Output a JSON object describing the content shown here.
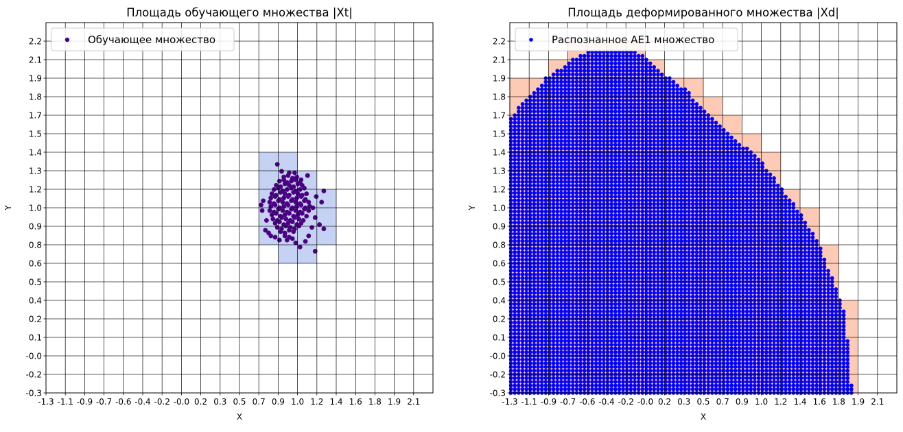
{
  "chart_data": [
    {
      "type": "scatter",
      "title": "Площадь обучающего множества |Xt|",
      "xlabel": "X",
      "ylabel": "Y",
      "xlim": [
        -1.28,
        2.3
      ],
      "ylim": [
        -0.3,
        2.34
      ],
      "grid": true,
      "legend_position": "top-left",
      "xticks": [
        -1.28,
        -1.101,
        -0.922,
        -0.743,
        -0.564,
        -0.385,
        -0.206,
        -0.027,
        0.152,
        0.331,
        0.51,
        0.689,
        0.868,
        1.047,
        1.226,
        1.405,
        1.584,
        1.763,
        1.942,
        2.121
      ],
      "xtick_labels": [
        "-1.3",
        "-1.1",
        "-0.9",
        "-0.7",
        "-0.6",
        "-0.4",
        "-0.2",
        "-0.0",
        "0.2",
        "0.3",
        "0.5",
        "0.7",
        "0.9",
        "1.0",
        "1.2",
        "1.4",
        "1.6",
        "1.8",
        "1.9",
        "2.1"
      ],
      "yticks": [
        -0.3,
        -0.168,
        -0.036,
        0.096,
        0.228,
        0.36,
        0.492,
        0.624,
        0.756,
        0.888,
        1.02,
        1.152,
        1.284,
        1.416,
        1.548,
        1.68,
        1.812,
        1.944,
        2.076,
        2.208
      ],
      "ytick_labels": [
        "-0.3",
        "-0.2",
        "-0.0",
        "0.1",
        "0.2",
        "0.4",
        "0.5",
        "0.6",
        "0.8",
        "0.9",
        "1.0",
        "1.2",
        "1.3",
        "1.4",
        "1.5",
        "1.7",
        "1.8",
        "1.9",
        "2.1",
        "2.2"
      ],
      "highlight_color": "#c5d2f3",
      "highlight_cells": [
        {
          "x": [
            0.689,
            0.868
          ],
          "y": [
            0.756,
            1.416
          ]
        },
        {
          "x": [
            0.868,
            1.047
          ],
          "y": [
            0.624,
            1.416
          ]
        },
        {
          "x": [
            1.047,
            1.226
          ],
          "y": [
            0.624,
            1.284
          ]
        },
        {
          "x": [
            1.226,
            1.405
          ],
          "y": [
            0.756,
            1.152
          ]
        }
      ],
      "series": [
        {
          "name": "Обучающее множество",
          "color": "#4b0082",
          "points": [
            [
              0.92,
              1.24
            ],
            [
              0.96,
              1.25
            ],
            [
              1.0,
              1.23
            ],
            [
              1.04,
              1.24
            ],
            [
              0.88,
              1.21
            ],
            [
              0.92,
              1.22
            ],
            [
              0.95,
              1.2
            ],
            [
              0.99,
              1.21
            ],
            [
              1.03,
              1.22
            ],
            [
              1.07,
              1.2
            ],
            [
              0.85,
              1.18
            ],
            [
              0.89,
              1.17
            ],
            [
              0.93,
              1.19
            ],
            [
              0.97,
              1.18
            ],
            [
              1.01,
              1.17
            ],
            [
              1.05,
              1.19
            ],
            [
              1.09,
              1.18
            ],
            [
              0.83,
              1.15
            ],
            [
              0.87,
              1.16
            ],
            [
              0.91,
              1.14
            ],
            [
              0.95,
              1.15
            ],
            [
              0.99,
              1.16
            ],
            [
              1.03,
              1.14
            ],
            [
              1.07,
              1.15
            ],
            [
              1.11,
              1.16
            ],
            [
              0.81,
              1.12
            ],
            [
              0.85,
              1.11
            ],
            [
              0.89,
              1.13
            ],
            [
              0.93,
              1.12
            ],
            [
              0.97,
              1.11
            ],
            [
              1.01,
              1.13
            ],
            [
              1.05,
              1.12
            ],
            [
              1.09,
              1.11
            ],
            [
              1.13,
              1.12
            ],
            [
              0.8,
              1.09
            ],
            [
              0.84,
              1.1
            ],
            [
              0.88,
              1.08
            ],
            [
              0.92,
              1.09
            ],
            [
              0.96,
              1.1
            ],
            [
              1.0,
              1.08
            ],
            [
              1.04,
              1.09
            ],
            [
              1.08,
              1.1
            ],
            [
              1.12,
              1.08
            ],
            [
              0.79,
              1.06
            ],
            [
              0.83,
              1.05
            ],
            [
              0.87,
              1.07
            ],
            [
              0.91,
              1.06
            ],
            [
              0.95,
              1.05
            ],
            [
              0.99,
              1.07
            ],
            [
              1.03,
              1.06
            ],
            [
              1.07,
              1.05
            ],
            [
              1.11,
              1.07
            ],
            [
              1.15,
              1.06
            ],
            [
              0.8,
              1.03
            ],
            [
              0.84,
              1.04
            ],
            [
              0.88,
              1.02
            ],
            [
              0.92,
              1.03
            ],
            [
              0.96,
              1.04
            ],
            [
              1.0,
              1.02
            ],
            [
              1.04,
              1.03
            ],
            [
              1.08,
              1.04
            ],
            [
              1.12,
              1.02
            ],
            [
              1.16,
              1.03
            ],
            [
              0.79,
              1.0
            ],
            [
              0.83,
              0.99
            ],
            [
              0.87,
              1.01
            ],
            [
              0.91,
              1.0
            ],
            [
              0.95,
              0.99
            ],
            [
              0.99,
              1.01
            ],
            [
              1.03,
              1.0
            ],
            [
              1.07,
              0.99
            ],
            [
              1.11,
              1.01
            ],
            [
              1.15,
              1.0
            ],
            [
              0.81,
              0.97
            ],
            [
              0.85,
              0.98
            ],
            [
              0.89,
              0.96
            ],
            [
              0.93,
              0.97
            ],
            [
              0.97,
              0.98
            ],
            [
              1.01,
              0.96
            ],
            [
              1.05,
              0.97
            ],
            [
              1.09,
              0.98
            ],
            [
              1.13,
              0.96
            ],
            [
              0.82,
              0.94
            ],
            [
              0.86,
              0.93
            ],
            [
              0.9,
              0.95
            ],
            [
              0.94,
              0.94
            ],
            [
              0.98,
              0.93
            ],
            [
              1.02,
              0.95
            ],
            [
              1.06,
              0.94
            ],
            [
              1.1,
              0.93
            ],
            [
              0.84,
              0.91
            ],
            [
              0.88,
              0.92
            ],
            [
              0.92,
              0.9
            ],
            [
              0.96,
              0.91
            ],
            [
              1.0,
              0.92
            ],
            [
              1.04,
              0.9
            ],
            [
              1.08,
              0.91
            ],
            [
              0.86,
              0.88
            ],
            [
              0.9,
              0.87
            ],
            [
              0.94,
              0.89
            ],
            [
              0.98,
              0.88
            ],
            [
              1.02,
              0.87
            ],
            [
              1.06,
              0.89
            ],
            [
              0.89,
              0.85
            ],
            [
              0.93,
              0.84
            ],
            [
              0.97,
              0.86
            ],
            [
              1.01,
              0.85
            ],
            [
              0.93,
              0.82
            ],
            [
              0.97,
              0.81
            ],
            [
              0.95,
              0.79
            ],
            [
              1.0,
              0.8
            ],
            [
              0.86,
              1.33
            ],
            [
              0.9,
              1.28
            ],
            [
              0.97,
              1.27
            ],
            [
              1.02,
              1.27
            ],
            [
              1.14,
              1.25
            ],
            [
              1.08,
              1.22
            ],
            [
              0.71,
              1.04
            ],
            [
              0.73,
              1.07
            ],
            [
              0.72,
              1.0
            ],
            [
              0.75,
              0.86
            ],
            [
              0.78,
              0.84
            ],
            [
              0.76,
              0.93
            ],
            [
              0.8,
              0.82
            ],
            [
              1.29,
              1.14
            ],
            [
              1.27,
              1.06
            ],
            [
              1.29,
              0.87
            ],
            [
              1.25,
              0.9
            ],
            [
              1.21,
              0.95
            ],
            [
              1.19,
              1.02
            ],
            [
              1.18,
              0.88
            ],
            [
              1.22,
              1.1
            ],
            [
              1.21,
              0.71
            ],
            [
              1.07,
              0.74
            ],
            [
              1.12,
              0.78
            ],
            [
              1.15,
              0.82
            ],
            [
              0.88,
              0.79
            ],
            [
              0.84,
              0.81
            ],
            [
              1.03,
              0.77
            ]
          ]
        }
      ]
    },
    {
      "type": "scatter",
      "title": "Площадь деформированного множества |Xd|",
      "xlabel": "X",
      "ylabel": "Y",
      "xlim": [
        -1.28,
        2.3
      ],
      "ylim": [
        -0.3,
        2.34
      ],
      "grid": true,
      "legend_position": "top-left",
      "xticks": [
        -1.28,
        -1.101,
        -0.922,
        -0.743,
        -0.564,
        -0.385,
        -0.206,
        -0.027,
        0.152,
        0.331,
        0.51,
        0.689,
        0.868,
        1.047,
        1.226,
        1.405,
        1.584,
        1.763,
        1.942,
        2.121
      ],
      "xtick_labels": [
        "-1.3",
        "-1.1",
        "-0.9",
        "-0.7",
        "-0.6",
        "-0.4",
        "-0.2",
        "-0.0",
        "0.2",
        "0.3",
        "0.5",
        "0.7",
        "0.9",
        "1.0",
        "1.2",
        "1.4",
        "1.6",
        "1.8",
        "1.9",
        "2.1"
      ],
      "yticks": [
        -0.3,
        -0.168,
        -0.036,
        0.096,
        0.228,
        0.36,
        0.492,
        0.624,
        0.756,
        0.888,
        1.02,
        1.152,
        1.284,
        1.416,
        1.548,
        1.68,
        1.812,
        1.944,
        2.076,
        2.208
      ],
      "ytick_labels": [
        "-0.3",
        "-0.2",
        "-0.0",
        "0.1",
        "0.2",
        "0.4",
        "0.5",
        "0.6",
        "0.8",
        "0.9",
        "1.0",
        "1.2",
        "1.3",
        "1.4",
        "1.5",
        "1.7",
        "1.8",
        "1.9",
        "2.1",
        "2.2"
      ],
      "highlight_color": "#fdcab5",
      "highlight_cells": [
        {
          "x": [
            -1.28,
            -0.922
          ],
          "y": [
            -0.3,
            1.944
          ]
        },
        {
          "x": [
            -0.922,
            -0.743
          ],
          "y": [
            -0.3,
            2.076
          ]
        },
        {
          "x": [
            -0.743,
            -0.027
          ],
          "y": [
            -0.3,
            2.208
          ]
        },
        {
          "x": [
            -0.027,
            0.152
          ],
          "y": [
            -0.3,
            2.076
          ]
        },
        {
          "x": [
            0.152,
            0.51
          ],
          "y": [
            -0.3,
            1.944
          ]
        },
        {
          "x": [
            0.51,
            0.689
          ],
          "y": [
            -0.3,
            1.812
          ]
        },
        {
          "x": [
            0.689,
            0.868
          ],
          "y": [
            -0.3,
            1.68
          ]
        },
        {
          "x": [
            0.868,
            1.047
          ],
          "y": [
            -0.3,
            1.548
          ]
        },
        {
          "x": [
            1.047,
            1.226
          ],
          "y": [
            -0.3,
            1.416
          ]
        },
        {
          "x": [
            1.226,
            1.405
          ],
          "y": [
            -0.3,
            1.152
          ]
        },
        {
          "x": [
            1.405,
            1.584
          ],
          "y": [
            -0.3,
            1.02
          ]
        },
        {
          "x": [
            1.584,
            1.763
          ],
          "y": [
            -0.3,
            0.756
          ]
        },
        {
          "x": [
            1.763,
            1.942
          ],
          "y": [
            -0.3,
            0.36
          ]
        }
      ],
      "series": [
        {
          "name": "Распознанное АЕ1 множество",
          "color": "#0000ff",
          "lattice": {
            "x_start": -1.27,
            "x_step": 0.0358,
            "y_start": -0.3,
            "y_step": 0.0264,
            "upper_boundary": [
              [
                -1.28,
                1.67
              ],
              [
                -1.25,
                1.69
              ],
              [
                -1.14,
                1.79
              ],
              [
                -1.03,
                1.87
              ],
              [
                -0.96,
                1.94
              ],
              [
                -0.825,
                2.01
              ],
              [
                -0.75,
                2.05
              ],
              [
                -0.685,
                2.09
              ],
              [
                -0.58,
                2.13
              ],
              [
                -0.1,
                2.13
              ],
              [
                -0.03,
                2.09
              ],
              [
                0.05,
                2.05
              ],
              [
                0.14,
                1.98
              ],
              [
                0.24,
                1.92
              ],
              [
                0.35,
                1.87
              ],
              [
                0.47,
                1.75
              ],
              [
                0.55,
                1.69
              ],
              [
                0.64,
                1.62
              ],
              [
                0.712,
                1.58
              ],
              [
                0.864,
                1.475
              ],
              [
                1.04,
                1.36
              ],
              [
                1.22,
                1.18
              ],
              [
                1.395,
                0.996
              ],
              [
                1.57,
                0.776
              ],
              [
                1.755,
                0.42
              ],
              [
                1.81,
                0.28
              ],
              [
                1.87,
                -0.05
              ],
              [
                1.885,
                -0.3
              ]
            ]
          }
        }
      ]
    }
  ]
}
